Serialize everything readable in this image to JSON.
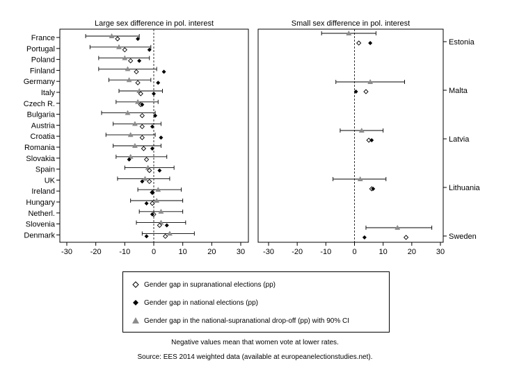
{
  "chart_data": [
    {
      "type": "dot",
      "title": "Large sex difference in pol. interest",
      "xlim": [
        -32,
        32
      ],
      "xticks": [
        -30,
        -20,
        -10,
        0,
        10,
        20,
        30
      ],
      "categories": [
        "France",
        "Portugal",
        "Poland",
        "Finland",
        "Germany",
        "Italy",
        "Czech R.",
        "Bulgaria",
        "Austria",
        "Croatia",
        "Romania",
        "Slovakia",
        "Spain",
        "UK",
        "Ireland",
        "Hungary",
        "Netherl.",
        "Slovenia",
        "Denmark"
      ],
      "supranational": [
        -12.5,
        -10,
        -8,
        -6,
        -5.5,
        -4.5,
        -4.5,
        -4,
        -4,
        -4,
        -3.5,
        -2.5,
        -1.5,
        -1.5,
        -0.5,
        -0.5,
        0,
        2,
        4
      ],
      "national": [
        -5.5,
        -1.5,
        -5,
        3.5,
        1.5,
        0,
        -4,
        0.5,
        -0.5,
        2.5,
        -0.5,
        -8.5,
        2,
        -4,
        -0.5,
        -2.5,
        -0.5,
        4.5,
        -2.5
      ],
      "dropoff": [
        -14.5,
        -12,
        -10,
        -9,
        -8.5,
        -5,
        -5.5,
        -9,
        -6.5,
        -8,
        -6.5,
        -8,
        -2,
        -3,
        1.5,
        1,
        2.5,
        2.5,
        5.5
      ],
      "ci_low": [
        -23.5,
        -22,
        -19,
        -19,
        -15.5,
        -12,
        -13,
        -18,
        -14,
        -16.5,
        -14,
        -13,
        -10,
        -12.5,
        -5.5,
        -8,
        -5,
        -6,
        -4
      ],
      "ci_high": [
        -5,
        -1,
        -1.5,
        1,
        -1,
        3,
        1.5,
        0.5,
        2.5,
        0.5,
        2.5,
        4.5,
        7,
        5.5,
        9.5,
        10,
        10,
        11,
        14
      ]
    },
    {
      "type": "dot",
      "title": "Small sex difference in pol. interest",
      "xlim": [
        -32,
        32
      ],
      "xticks": [
        -30,
        -20,
        -10,
        0,
        10,
        20,
        30
      ],
      "categories": [
        "Estonia",
        "Malta",
        "Latvia",
        "Lithuania",
        "Sweden"
      ],
      "supranational": [
        1.5,
        4,
        5,
        6,
        18
      ],
      "national": [
        5.5,
        0.5,
        6,
        6.5,
        3.5
      ],
      "dropoff": [
        -2,
        5.5,
        2.5,
        2,
        15
      ],
      "ci_low": [
        -11.5,
        -6.5,
        -5,
        -7.5,
        4
      ],
      "ci_high": [
        7.5,
        17.5,
        10,
        11,
        27
      ]
    }
  ],
  "legend": {
    "supranational": "Gender gap in supranational elections (pp)",
    "national": "Gender gap in national elections (pp)",
    "dropoff": "Gender gap in the national-supranational drop-off (pp) with 90% CI"
  },
  "notes": {
    "line1": "Negative values mean that women vote at lower rates.",
    "line2": "Source: EES 2014 weighted data (available at europeanelectionstudies.net)."
  },
  "colors": {
    "dropoff": "#8c8c8c",
    "national": "#000000",
    "supranational": "#ffffff",
    "frame": "#000000"
  }
}
